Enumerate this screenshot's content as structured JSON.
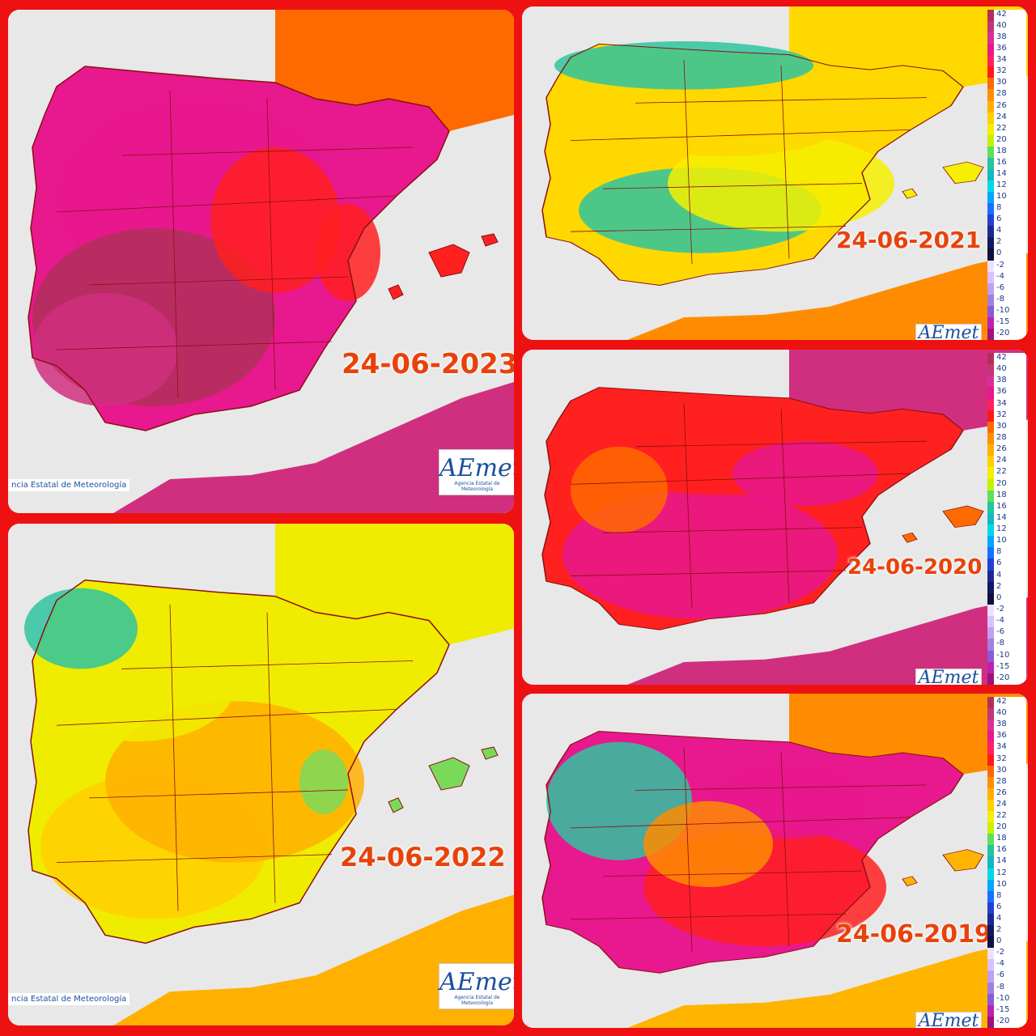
{
  "panels": [
    {
      "id": "p2023",
      "date": "24-06-2023",
      "theme": [
        "#b0305a",
        "#d02f7f",
        "#e8188e",
        "#ff2020",
        "#ff6a00"
      ],
      "credit": "ncia Estatal de Meteorología",
      "logo": "AEmet",
      "logo_sub": "Agencia Estatal de Meteorología"
    },
    {
      "id": "p2021",
      "date": "24-06-2021",
      "theme": [
        "#ff8c00",
        "#ffb400",
        "#ffd800",
        "#f6f000",
        "#2ec4a0"
      ],
      "logo": "AEmet"
    },
    {
      "id": "p2020",
      "date": "24-06-2020",
      "theme": [
        "#d02f7f",
        "#e8188e",
        "#ff2020",
        "#ff6a00",
        "#ffb400"
      ],
      "logo": "AEmet"
    },
    {
      "id": "p2022",
      "date": "24-06-2022",
      "theme": [
        "#ffb000",
        "#ffd000",
        "#f0ec00",
        "#7bd95a",
        "#2ec4a0"
      ],
      "credit": "ncia Estatal de Meteorología",
      "logo": "AEmet",
      "logo_sub": "Agencia Estatal de Meteorología"
    },
    {
      "id": "p2019",
      "date": "24-06-2019",
      "theme": [
        "#ff8c00",
        "#ff2020",
        "#e8188e",
        "#ffb400",
        "#2ec4a0"
      ],
      "logo": "AEmet"
    }
  ],
  "legend": {
    "labels": [
      "42",
      "40",
      "38",
      "36",
      "34",
      "32",
      "30",
      "28",
      "26",
      "24",
      "22",
      "20",
      "18",
      "16",
      "14",
      "12",
      "10",
      "8",
      "6",
      "4",
      "2",
      "0",
      "-2",
      "-4",
      "-6",
      "-8",
      "-10",
      "-15",
      "-20"
    ],
    "colors": [
      "#b0305a",
      "#c43577",
      "#d8309b",
      "#e8188e",
      "#ff2060",
      "#ff1a1a",
      "#ff6a00",
      "#ff9000",
      "#ffb000",
      "#ffd000",
      "#f4ef00",
      "#c8f000",
      "#5de05a",
      "#25c3a0",
      "#14b8c0",
      "#00d8e8",
      "#00a8ff",
      "#1470ff",
      "#1f40d0",
      "#1a2a90",
      "#101a60",
      "#101040",
      "#efe0ff",
      "#d8c0ff",
      "#c0a0f0",
      "#a080e0",
      "#8a5ad8",
      "#c020b0",
      "#a01080"
    ]
  }
}
